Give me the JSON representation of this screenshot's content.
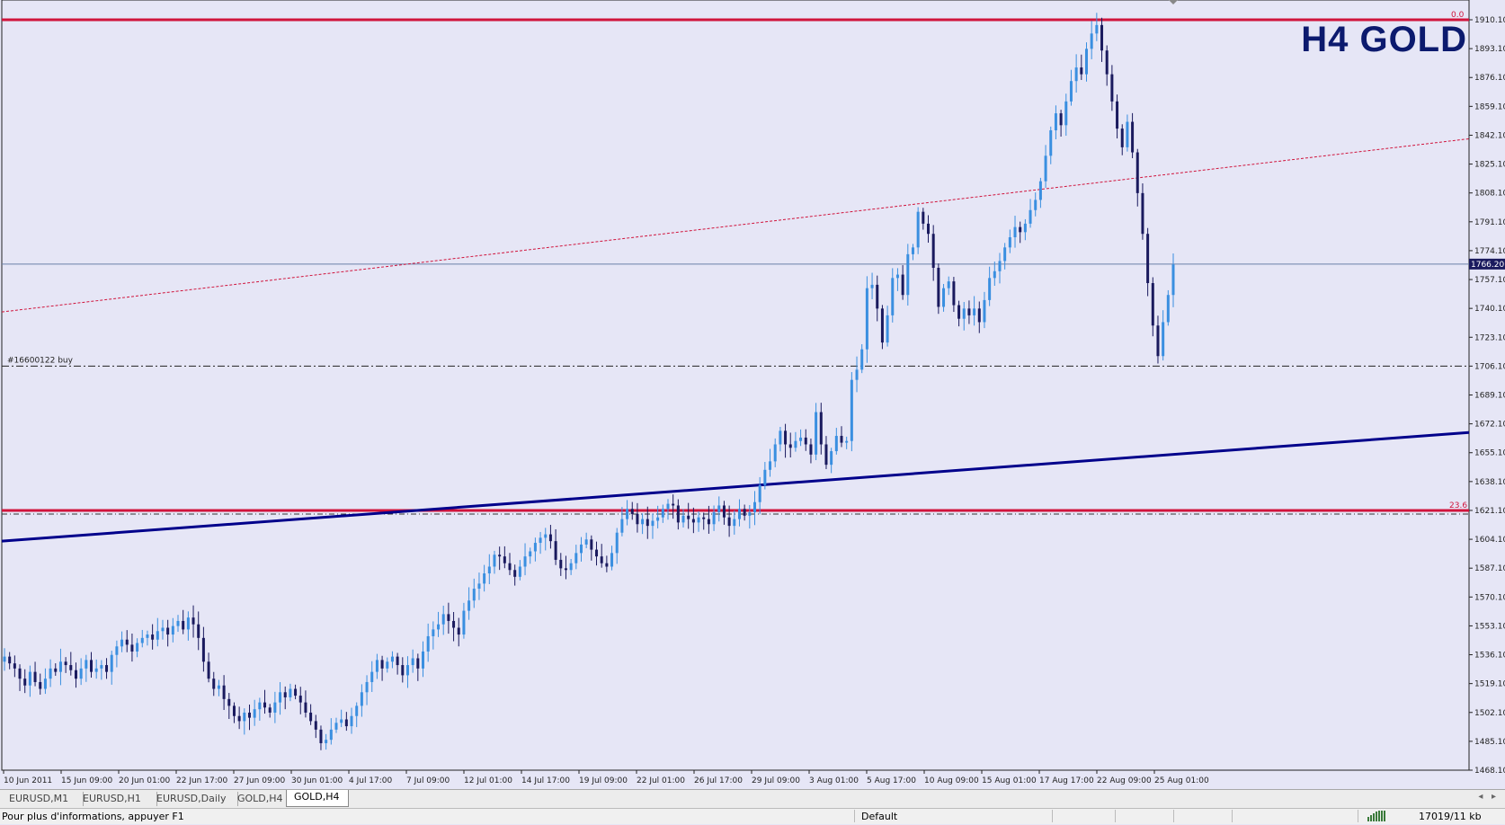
{
  "chart": {
    "title": "H4 GOLD",
    "price_labels": [
      "1910.10",
      "1893.10",
      "1876.10",
      "1859.10",
      "1842.10",
      "1825.10",
      "1808.10",
      "1791.10",
      "1774.10",
      "1757.10",
      "1740.10",
      "1723.10",
      "1706.10",
      "1689.10",
      "1672.10",
      "1655.10",
      "1638.10",
      "1621.10",
      "1604.10",
      "1587.10",
      "1570.10",
      "1553.10",
      "1536.10",
      "1519.10",
      "1502.10",
      "1485.10",
      "1468.10"
    ],
    "current_price": "1766.20",
    "fib_top_label": "0.0",
    "fib_236_label": "23.6",
    "order_label": "#16600122 buy",
    "time_labels": [
      "10 Jun 2011",
      "15 Jun 09:00",
      "20 Jun 01:00",
      "22 Jun 17:00",
      "27 Jun 09:00",
      "30 Jun 01:00",
      "4 Jul 17:00",
      "7 Jul 09:00",
      "12 Jul 01:00",
      "14 Jul 17:00",
      "19 Jul 09:00",
      "22 Jul 01:00",
      "26 Jul 17:00",
      "29 Jul 09:00",
      "3 Aug 01:00",
      "5 Aug 17:00",
      "10 Aug 09:00",
      "15 Aug 01:00",
      "17 Aug 17:00",
      "22 Aug 09:00",
      "25 Aug 01:00"
    ],
    "colors": {
      "background": "#e6e6f6",
      "bull": "#3a8fe0",
      "bear": "#1a1a5e",
      "fib": "#d0143c",
      "trend": "#00008b",
      "ask": "#6a7fa8"
    }
  },
  "chart_data": {
    "type": "candlestick",
    "symbol": "GOLD",
    "timeframe": "H4",
    "ylim": [
      1468.1,
      1910.1
    ],
    "closes": [
      1535,
      1531,
      1528,
      1522,
      1518,
      1526,
      1520,
      1516,
      1522,
      1528,
      1526,
      1532,
      1530,
      1527,
      1522,
      1528,
      1533,
      1526,
      1528,
      1530,
      1526,
      1536,
      1541,
      1545,
      1542,
      1538,
      1543,
      1546,
      1548,
      1545,
      1550,
      1552,
      1548,
      1553,
      1556,
      1551,
      1558,
      1554,
      1546,
      1532,
      1522,
      1516,
      1518,
      1510,
      1506,
      1500,
      1497,
      1502,
      1499,
      1504,
      1508,
      1505,
      1502,
      1508,
      1514,
      1511,
      1516,
      1512,
      1508,
      1502,
      1497,
      1492,
      1484,
      1486,
      1492,
      1496,
      1498,
      1494,
      1500,
      1506,
      1514,
      1520,
      1526,
      1533,
      1528,
      1532,
      1535,
      1530,
      1524,
      1530,
      1534,
      1528,
      1538,
      1547,
      1551,
      1554,
      1560,
      1556,
      1552,
      1548,
      1562,
      1568,
      1575,
      1578,
      1584,
      1588,
      1595,
      1594,
      1590,
      1586,
      1582,
      1588,
      1594,
      1597,
      1602,
      1605,
      1607,
      1603,
      1592,
      1587,
      1586,
      1590,
      1596,
      1601,
      1604,
      1598,
      1594,
      1590,
      1588,
      1596,
      1608,
      1616,
      1622,
      1619,
      1613,
      1616,
      1612,
      1615,
      1617,
      1622,
      1625,
      1624,
      1614,
      1618,
      1616,
      1614,
      1617,
      1616,
      1613,
      1620,
      1624,
      1617,
      1612,
      1616,
      1622,
      1618,
      1620,
      1626,
      1636,
      1645,
      1650,
      1660,
      1668,
      1660,
      1658,
      1662,
      1664,
      1660,
      1654,
      1679,
      1660,
      1648,
      1656,
      1665,
      1661,
      1662,
      1698,
      1704,
      1716,
      1752,
      1754,
      1740,
      1720,
      1736,
      1758,
      1760,
      1748,
      1772,
      1776,
      1797,
      1790,
      1784,
      1764,
      1741,
      1752,
      1756,
      1742,
      1734,
      1740,
      1736,
      1740,
      1732,
      1745,
      1758,
      1762,
      1768,
      1776,
      1782,
      1788,
      1785,
      1790,
      1798,
      1804,
      1815,
      1830,
      1845,
      1855,
      1848,
      1862,
      1874,
      1882,
      1878,
      1893,
      1902,
      1907,
      1892,
      1878,
      1862,
      1846,
      1835,
      1850,
      1832,
      1808,
      1784,
      1755,
      1730,
      1712,
      1732,
      1748,
      1766
    ],
    "levels": {
      "fib_0": 1910.1,
      "fib_23_6": 1621.1,
      "order_buy": 1706.1,
      "bid": 1766.2
    },
    "trendlines": [
      {
        "style": "solid-blue",
        "from": [
          "10 Jun 2011",
          1603
        ],
        "to": [
          "25 Aug 01:00",
          1667
        ]
      },
      {
        "style": "dotted-red",
        "from": [
          "10 Jun 2011",
          1738
        ],
        "to": [
          "25 Aug 01:00",
          1840
        ]
      }
    ],
    "grid": false
  },
  "tabs": [
    {
      "label": "EURUSD,M1",
      "active": false
    },
    {
      "label": "EURUSD,H1",
      "active": false
    },
    {
      "label": "EURUSD,Daily",
      "active": false
    },
    {
      "label": "GOLD,H4",
      "active": false
    },
    {
      "label": "GOLD,H4",
      "active": true
    }
  ],
  "status": {
    "help": "Pour plus d'informations, appuyer F1",
    "profile": "Default",
    "traffic": "17019/11 kb"
  }
}
